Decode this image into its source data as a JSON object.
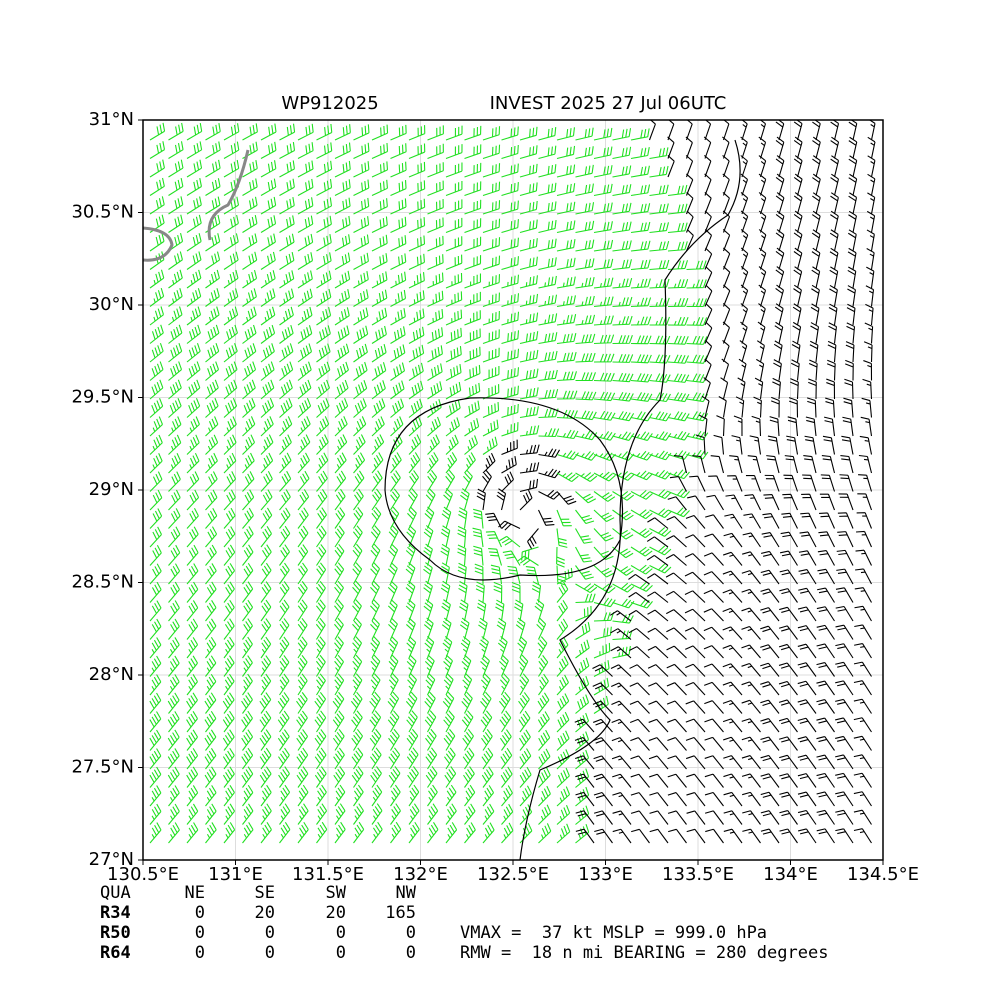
{
  "map": {
    "title_left": "WP912025",
    "title_right": "INVEST 2025 27 Jul 06UTC",
    "xlim": [
      130.5,
      134.5
    ],
    "ylim": [
      27,
      31
    ],
    "xticks": [
      {
        "value": 130.5,
        "label": "130.5°E"
      },
      {
        "value": 131,
        "label": "131°E"
      },
      {
        "value": 131.5,
        "label": "131.5°E"
      },
      {
        "value": 132,
        "label": "132°E"
      },
      {
        "value": 132.5,
        "label": "132.5°E"
      },
      {
        "value": 133,
        "label": "133°E"
      },
      {
        "value": 133.5,
        "label": "133.5°E"
      },
      {
        "value": 134,
        "label": "134°E"
      },
      {
        "value": 134.5,
        "label": "134.5°E"
      }
    ],
    "yticks": [
      {
        "value": 27,
        "label": "27°N"
      },
      {
        "value": 27.5,
        "label": "27.5°N"
      },
      {
        "value": 28,
        "label": "28°N"
      },
      {
        "value": 28.5,
        "label": "28.5°N"
      },
      {
        "value": 29,
        "label": "29°N"
      },
      {
        "value": 29.5,
        "label": "29.5°N"
      },
      {
        "value": 30,
        "label": "30°N"
      },
      {
        "value": 30.5,
        "label": "30.5°N"
      },
      {
        "value": 31,
        "label": "31°N"
      }
    ],
    "grid": true
  },
  "table": {
    "header": [
      "QUA",
      "NE",
      "SE",
      "SW",
      "NW"
    ],
    "rows": [
      [
        "R34",
        0,
        20,
        20,
        165
      ],
      [
        "R50",
        0,
        0,
        0,
        0
      ],
      [
        "R64",
        0,
        0,
        0,
        0
      ]
    ]
  },
  "stats": [
    "VMAX =  37 kt MSLP = 999.0 hPa",
    "RMW =  18 n mi BEARING = 280 degrees"
  ]
}
